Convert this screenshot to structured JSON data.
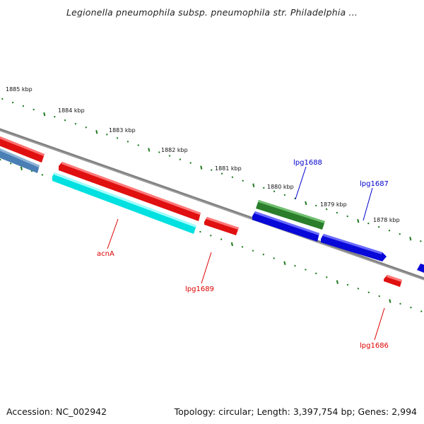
{
  "title": "Legionella pneumophila subsp. pneumophila str. Philadelphia ...",
  "footer": {
    "accession": "Accession: NC_002942",
    "summary": "Topology: circular; Length: 3,397,754 bp; Genes: 2,994"
  },
  "scale_labels": [
    "1885 kbp",
    "1884 kbp",
    "1883 kbp",
    "1882 kbp",
    "1881 kbp",
    "1880 kbp",
    "1879 kbp",
    "1878 kbp"
  ],
  "genes": [
    {
      "label": "lpg1688",
      "strand": "+",
      "color": "#2e8b2e"
    },
    {
      "label": "lpg1687",
      "strand": "-",
      "color": "#0a0ad8"
    },
    {
      "label": "acnA",
      "strand": "-",
      "color": "#e81010"
    },
    {
      "label": "lpg1689",
      "strand": "-",
      "color": "#e81010"
    },
    {
      "label": "lpg1686",
      "strand": "-",
      "color": "#e81010"
    }
  ],
  "colors": {
    "backbone": "#808080",
    "tick": "#1f7a1f",
    "label_plus": "#0000cc",
    "label_minus": "#dd0000"
  }
}
